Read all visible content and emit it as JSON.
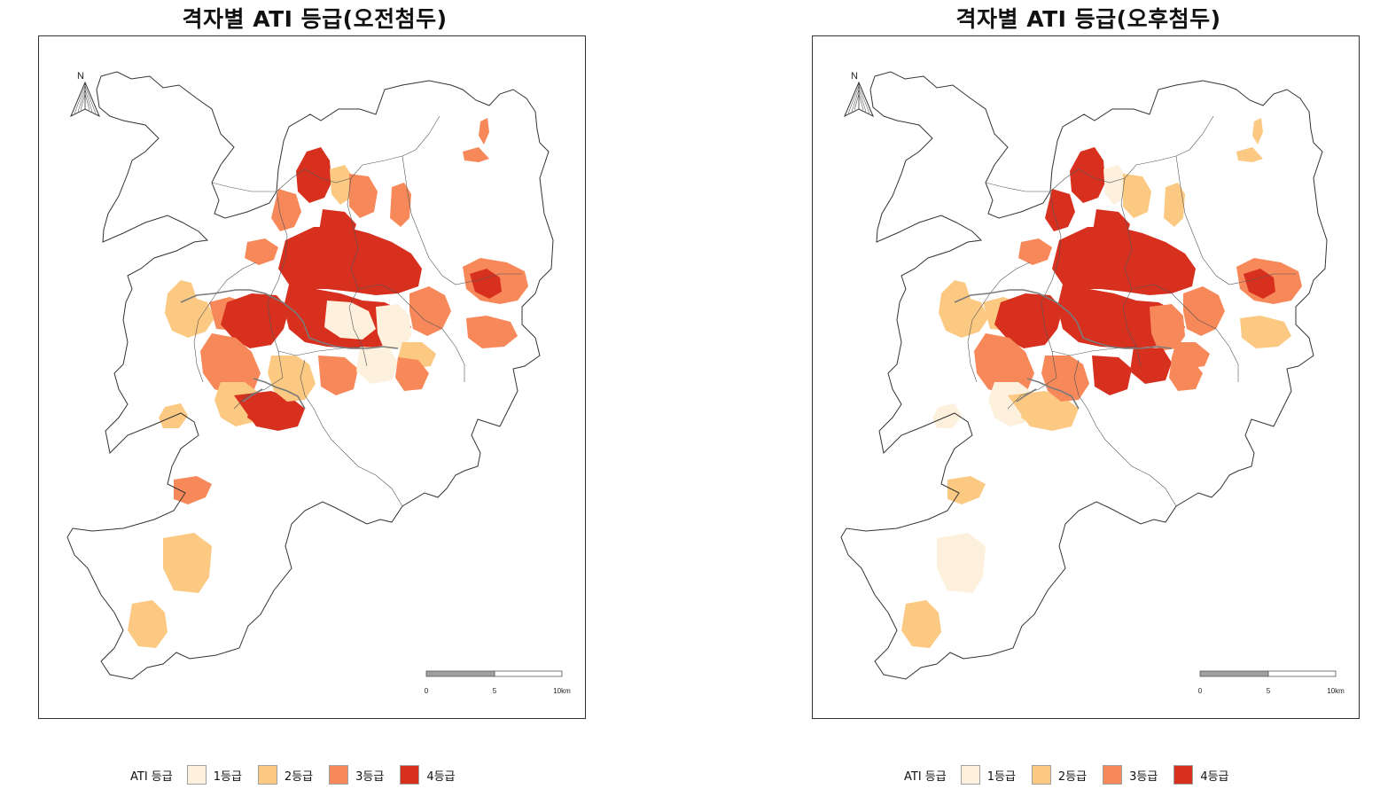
{
  "colors": {
    "grade1": "#fdf0dc",
    "grade2": "#fcc982",
    "grade3": "#f7885a",
    "grade4": "#d7301f",
    "boundary": "#333333",
    "road": "#7a7a7a"
  },
  "maps": [
    {
      "title": "격자별 ATI 등급(오전첨두)",
      "north_label": "N",
      "scale": {
        "labels": [
          "0",
          "5",
          "10km"
        ]
      },
      "legend": {
        "title": "ATI 등급",
        "items": [
          {
            "label": "1등급",
            "color": "#fdf0dc"
          },
          {
            "label": "2등급",
            "color": "#fcc982"
          },
          {
            "label": "3등급",
            "color": "#f7885a"
          },
          {
            "label": "4등급",
            "color": "#d7301f"
          }
        ]
      }
    },
    {
      "title": "격자별 ATI 등급(오후첨두)",
      "north_label": "N",
      "scale": {
        "labels": [
          "0",
          "5",
          "10km"
        ]
      },
      "legend": {
        "title": "ATI 등급",
        "items": [
          {
            "label": "1등급",
            "color": "#fdf0dc"
          },
          {
            "label": "2등급",
            "color": "#fcc982"
          },
          {
            "label": "3등급",
            "color": "#f7885a"
          },
          {
            "label": "4등급",
            "color": "#d7301f"
          }
        ]
      }
    }
  ]
}
